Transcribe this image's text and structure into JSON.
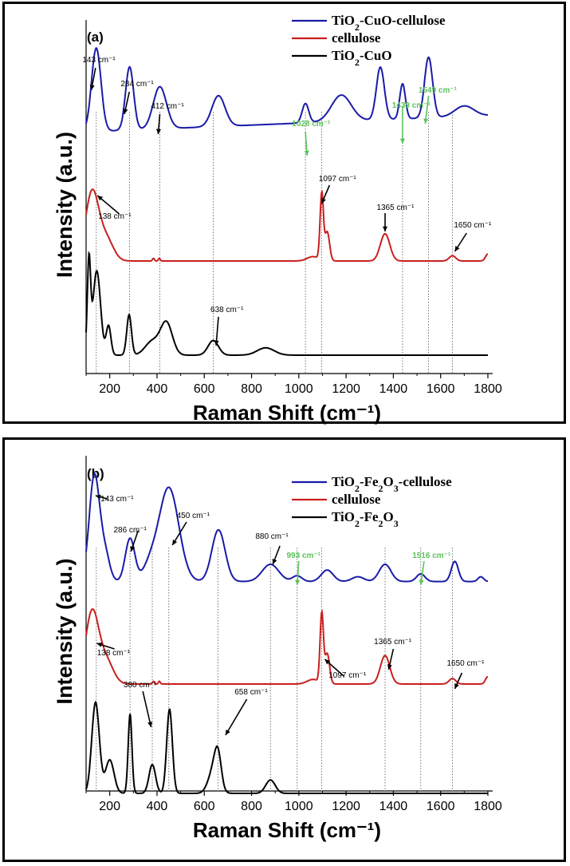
{
  "chart_data": [
    {
      "panel": "(a)",
      "type": "line",
      "xlabel": "Raman Shift (cm⁻¹)",
      "ylabel": "Intensity (a.u.)",
      "xlim": [
        100,
        1800
      ],
      "xticks": [
        200,
        400,
        600,
        800,
        1000,
        1200,
        1400,
        1600,
        1800
      ],
      "legend_position": "top-right",
      "legend": [
        "TiO₂-CuO-cellulose",
        "cellulose",
        "TiO₂-CuO"
      ],
      "colors": [
        "#1a1aa8",
        "#c8201e",
        "#000000"
      ],
      "series": [
        {
          "name": "TiO₂-CuO-cellulose",
          "color": "#1a1aa8",
          "baseline": 0.18,
          "slope": 0.00011,
          "peaks": [
            [
              143,
              0.95,
              20
            ],
            [
              284,
              0.72,
              17
            ],
            [
              412,
              0.48,
              28
            ],
            [
              660,
              0.35,
              28
            ],
            [
              1028,
              0.22,
              14
            ],
            [
              1180,
              0.3,
              42
            ],
            [
              1345,
              0.6,
              17
            ],
            [
              1439,
              0.4,
              12
            ],
            [
              1549,
              0.69,
              17
            ],
            [
              1700,
              0.12,
              40
            ]
          ]
        },
        {
          "name": "cellulose",
          "color": "#c8201e",
          "baseline": 0.0,
          "slope": 0.0,
          "peaks": [
            [
              125,
              0.78,
              28
            ],
            [
              185,
              0.25,
              30
            ],
            [
              385,
              0.03,
              4
            ],
            [
              410,
              0.03,
              4
            ],
            [
              1060,
              0.05,
              25
            ],
            [
              1097,
              0.75,
              7
            ],
            [
              1120,
              0.33,
              10
            ],
            [
              1365,
              0.31,
              20
            ],
            [
              1650,
              0.06,
              14
            ],
            [
              1800,
              0.08,
              10
            ]
          ]
        },
        {
          "name": "TiO₂-CuO",
          "color": "#000000",
          "baseline": 0.0,
          "slope": 0.0,
          "peaks": [
            [
              112,
              1.0,
              7
            ],
            [
              145,
              0.92,
              16
            ],
            [
              195,
              0.32,
              10
            ],
            [
              282,
              0.44,
              10
            ],
            [
              380,
              0.15,
              30
            ],
            [
              440,
              0.35,
              25
            ],
            [
              638,
              0.16,
              22
            ],
            [
              860,
              0.08,
              36
            ]
          ]
        }
      ],
      "guides_cm": [
        143,
        284,
        412,
        638,
        1028,
        1097,
        1439,
        1549,
        1650
      ],
      "annotations": [
        {
          "text": "143 cm⁻¹",
          "color": "black",
          "series": "TiO₂-CuO-cellulose"
        },
        {
          "text": "284 cm⁻¹",
          "color": "black",
          "series": "TiO₂-CuO-cellulose"
        },
        {
          "text": "412 cm⁻¹",
          "color": "black",
          "series": "TiO₂-CuO-cellulose"
        },
        {
          "text": "1028 cm⁻¹",
          "color": "green",
          "series": "TiO₂-CuO-cellulose"
        },
        {
          "text": "1439 cm⁻¹",
          "color": "green",
          "series": "TiO₂-CuO-cellulose"
        },
        {
          "text": "1549 cm⁻¹",
          "color": "green",
          "series": "TiO₂-CuO-cellulose"
        },
        {
          "text": "138 cm⁻¹",
          "color": "black",
          "series": "cellulose"
        },
        {
          "text": "1097 cm⁻¹",
          "color": "black",
          "series": "cellulose"
        },
        {
          "text": "1365 cm⁻¹",
          "color": "black",
          "series": "cellulose"
        },
        {
          "text": "1650 cm⁻¹",
          "color": "black",
          "series": "cellulose"
        },
        {
          "text": "638 cm⁻¹",
          "color": "black",
          "series": "TiO₂-CuO"
        }
      ]
    },
    {
      "panel": "(b)",
      "type": "line",
      "xlabel": "Raman Shift (cm⁻¹)",
      "ylabel": "Intensity (a.u.)",
      "xlim": [
        100,
        1800
      ],
      "xticks": [
        200,
        400,
        600,
        800,
        1000,
        1200,
        1400,
        1600,
        1800
      ],
      "legend_position": "top-right",
      "legend": [
        "TiO₂-Fe₂O₃-cellulose",
        "cellulose",
        "TiO₂-Fe₂O₃"
      ],
      "colors": [
        "#1a1aa8",
        "#c8201e",
        "#000000"
      ],
      "series": [
        {
          "name": "TiO₂-Fe₂O₃-cellulose",
          "color": "#1a1aa8",
          "baseline": 0.12,
          "slope": 0.0,
          "peaks": [
            [
              135,
              1.1,
              22
            ],
            [
              180,
              0.28,
              20
            ],
            [
              286,
              0.45,
              20
            ],
            [
              450,
              0.98,
              42
            ],
            [
              370,
              0.15,
              30
            ],
            [
              660,
              0.54,
              28
            ],
            [
              880,
              0.18,
              35
            ],
            [
              993,
              0.06,
              20
            ],
            [
              1120,
              0.12,
              25
            ],
            [
              1250,
              0.05,
              25
            ],
            [
              1365,
              0.18,
              25
            ],
            [
              1516,
              0.08,
              18
            ],
            [
              1660,
              0.21,
              15
            ],
            [
              1770,
              0.05,
              12
            ]
          ]
        },
        {
          "name": "cellulose",
          "color": "#c8201e",
          "baseline": 0.0,
          "slope": 0.0,
          "peaks": [
            [
              125,
              0.78,
              28
            ],
            [
              185,
              0.25,
              30
            ],
            [
              385,
              0.03,
              4
            ],
            [
              410,
              0.03,
              4
            ],
            [
              1060,
              0.05,
              25
            ],
            [
              1097,
              0.75,
              7
            ],
            [
              1120,
              0.33,
              10
            ],
            [
              1365,
              0.31,
              20
            ],
            [
              1650,
              0.06,
              14
            ],
            [
              1800,
              0.08,
              10
            ]
          ]
        },
        {
          "name": "TiO₂-Fe₂O₃",
          "color": "#000000",
          "baseline": 0.0,
          "slope": 0.0,
          "peaks": [
            [
              140,
              0.95,
              16
            ],
            [
              200,
              0.35,
              18
            ],
            [
              286,
              0.83,
              8
            ],
            [
              380,
              0.3,
              14
            ],
            [
              453,
              0.88,
              12
            ],
            [
              640,
              0.25,
              22
            ],
            [
              658,
              0.3,
              14
            ],
            [
              880,
              0.14,
              20
            ]
          ]
        }
      ],
      "guides_cm": [
        143,
        286,
        380,
        450,
        658,
        880,
        993,
        1097,
        1365,
        1516,
        1650
      ],
      "annotations": [
        {
          "text": "143  cm⁻¹",
          "color": "black",
          "series": "TiO₂-Fe₂O₃-cellulose"
        },
        {
          "text": "286  cm⁻¹",
          "color": "black",
          "series": "TiO₂-Fe₂O₃-cellulose"
        },
        {
          "text": "450  cm⁻¹",
          "color": "black",
          "series": "TiO₂-Fe₂O₃-cellulose"
        },
        {
          "text": "880  cm⁻¹",
          "color": "black",
          "series": "TiO₂-Fe₂O₃-cellulose"
        },
        {
          "text": "993  cm⁻¹",
          "color": "green",
          "series": "TiO₂-Fe₂O₃-cellulose"
        },
        {
          "text": "1516  cm⁻¹",
          "color": "green",
          "series": "TiO₂-Fe₂O₃-cellulose"
        },
        {
          "text": "138  cm⁻¹",
          "color": "black",
          "series": "cellulose"
        },
        {
          "text": "1097  cm⁻¹",
          "color": "black",
          "series": "cellulose"
        },
        {
          "text": "1365  cm⁻¹",
          "color": "black",
          "series": "cellulose"
        },
        {
          "text": "1650  cm⁻¹",
          "color": "black",
          "series": "cellulose"
        },
        {
          "text": "380  cm⁻¹",
          "color": "black",
          "series": "TiO₂-Fe₂O₃"
        },
        {
          "text": "658  cm⁻¹",
          "color": "black",
          "series": "TiO₂-Fe₂O₃"
        }
      ]
    }
  ]
}
